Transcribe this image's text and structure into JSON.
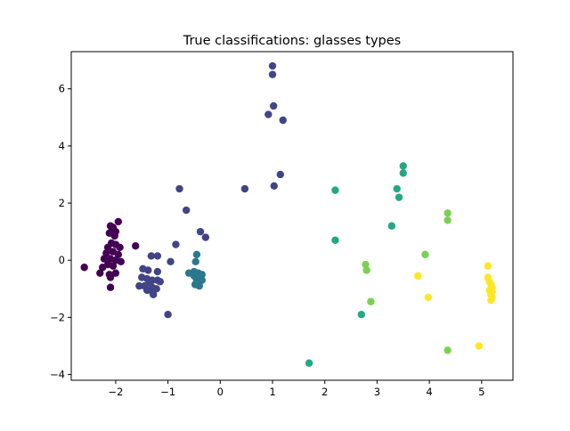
{
  "chart_data": {
    "type": "scatter",
    "title": "True classifications: glasses types",
    "xlabel": "",
    "ylabel": "",
    "xlim": [
      -2.85,
      5.6
    ],
    "ylim": [
      -4.2,
      7.3
    ],
    "x_ticks": [
      -2,
      -1,
      0,
      1,
      2,
      3,
      4,
      5
    ],
    "y_ticks": [
      -4,
      -2,
      0,
      2,
      4,
      6
    ],
    "grid": false,
    "series": [
      {
        "color": "#440154",
        "points": [
          [
            -2.1,
            1.2
          ],
          [
            -2.05,
            1.15
          ],
          [
            -2.0,
            1.0
          ],
          [
            -1.95,
            1.35
          ],
          [
            -2.02,
            0.85
          ],
          [
            -2.12,
            0.95
          ],
          [
            -2.08,
            0.6
          ],
          [
            -2.0,
            0.55
          ],
          [
            -1.92,
            0.45
          ],
          [
            -2.15,
            0.45
          ],
          [
            -2.18,
            0.25
          ],
          [
            -2.05,
            0.3
          ],
          [
            -1.95,
            0.2
          ],
          [
            -2.22,
            0.05
          ],
          [
            -2.1,
            0.05
          ],
          [
            -2.0,
            0.0
          ],
          [
            -1.9,
            -0.05
          ],
          [
            -2.15,
            -0.15
          ],
          [
            -2.05,
            -0.2
          ],
          [
            -2.25,
            -0.25
          ],
          [
            -2.3,
            -0.45
          ],
          [
            -2.12,
            -0.5
          ],
          [
            -2.0,
            -0.45
          ],
          [
            -2.1,
            -0.6
          ],
          [
            -2.6,
            -0.25
          ],
          [
            -2.1,
            -0.95
          ],
          [
            -1.62,
            0.5
          ]
        ]
      },
      {
        "color": "#414487",
        "points": [
          [
            1.0,
            6.8
          ],
          [
            1.0,
            6.5
          ],
          [
            1.02,
            5.4
          ],
          [
            0.92,
            5.1
          ],
          [
            1.2,
            4.9
          ],
          [
            1.15,
            3.0
          ],
          [
            1.03,
            2.6
          ],
          [
            0.47,
            2.5
          ],
          [
            -0.78,
            2.5
          ],
          [
            -0.65,
            1.75
          ],
          [
            -0.38,
            1.0
          ],
          [
            -0.28,
            0.8
          ],
          [
            -0.85,
            0.55
          ],
          [
            -1.32,
            0.15
          ],
          [
            -1.2,
            0.15
          ],
          [
            -0.95,
            -0.05
          ],
          [
            -1.48,
            -0.3
          ],
          [
            -1.38,
            -0.35
          ],
          [
            -1.2,
            -0.4
          ],
          [
            -1.5,
            -0.6
          ],
          [
            -1.4,
            -0.65
          ],
          [
            -1.3,
            -0.7
          ],
          [
            -1.2,
            -0.7
          ],
          [
            -1.15,
            -0.75
          ],
          [
            -1.35,
            -0.8
          ],
          [
            -1.45,
            -0.9
          ],
          [
            -1.55,
            -0.9
          ],
          [
            -1.3,
            -0.95
          ],
          [
            -1.22,
            -1.0
          ],
          [
            -1.4,
            -1.05
          ],
          [
            -1.3,
            -1.1
          ],
          [
            -1.28,
            -1.2
          ],
          [
            -1.0,
            -1.9
          ]
        ]
      },
      {
        "color": "#2a788e",
        "points": [
          [
            -0.45,
            0.2
          ],
          [
            -0.47,
            -0.05
          ],
          [
            -0.6,
            -0.45
          ],
          [
            -0.5,
            -0.4
          ],
          [
            -0.42,
            -0.45
          ],
          [
            -0.35,
            -0.5
          ],
          [
            -0.5,
            -0.55
          ],
          [
            -0.38,
            -0.6
          ],
          [
            -0.45,
            -0.7
          ],
          [
            -0.35,
            -0.7
          ],
          [
            -0.48,
            -0.85
          ],
          [
            -0.4,
            -0.9
          ]
        ]
      },
      {
        "color": "#22a884",
        "points": [
          [
            3.5,
            3.3
          ],
          [
            3.5,
            3.05
          ],
          [
            3.38,
            2.5
          ],
          [
            2.2,
            2.45
          ],
          [
            3.42,
            2.2
          ],
          [
            3.28,
            1.2
          ],
          [
            2.2,
            0.7
          ],
          [
            2.7,
            -1.9
          ],
          [
            1.7,
            -3.6
          ]
        ]
      },
      {
        "color": "#7ad151",
        "points": [
          [
            4.35,
            1.65
          ],
          [
            4.35,
            1.4
          ],
          [
            3.92,
            0.2
          ],
          [
            2.78,
            -0.15
          ],
          [
            2.8,
            -0.35
          ],
          [
            2.88,
            -1.45
          ],
          [
            4.35,
            -3.15
          ]
        ]
      },
      {
        "color": "#fde725",
        "points": [
          [
            3.78,
            -0.55
          ],
          [
            3.98,
            -1.3
          ],
          [
            4.95,
            -3.0
          ],
          [
            5.12,
            -0.2
          ],
          [
            5.12,
            -0.6
          ],
          [
            5.15,
            -0.75
          ],
          [
            5.18,
            -0.85
          ],
          [
            5.2,
            -0.95
          ],
          [
            5.15,
            -1.05
          ],
          [
            5.2,
            -1.1
          ],
          [
            5.18,
            -1.2
          ],
          [
            5.2,
            -1.3
          ],
          [
            5.18,
            -1.4
          ]
        ]
      }
    ]
  }
}
